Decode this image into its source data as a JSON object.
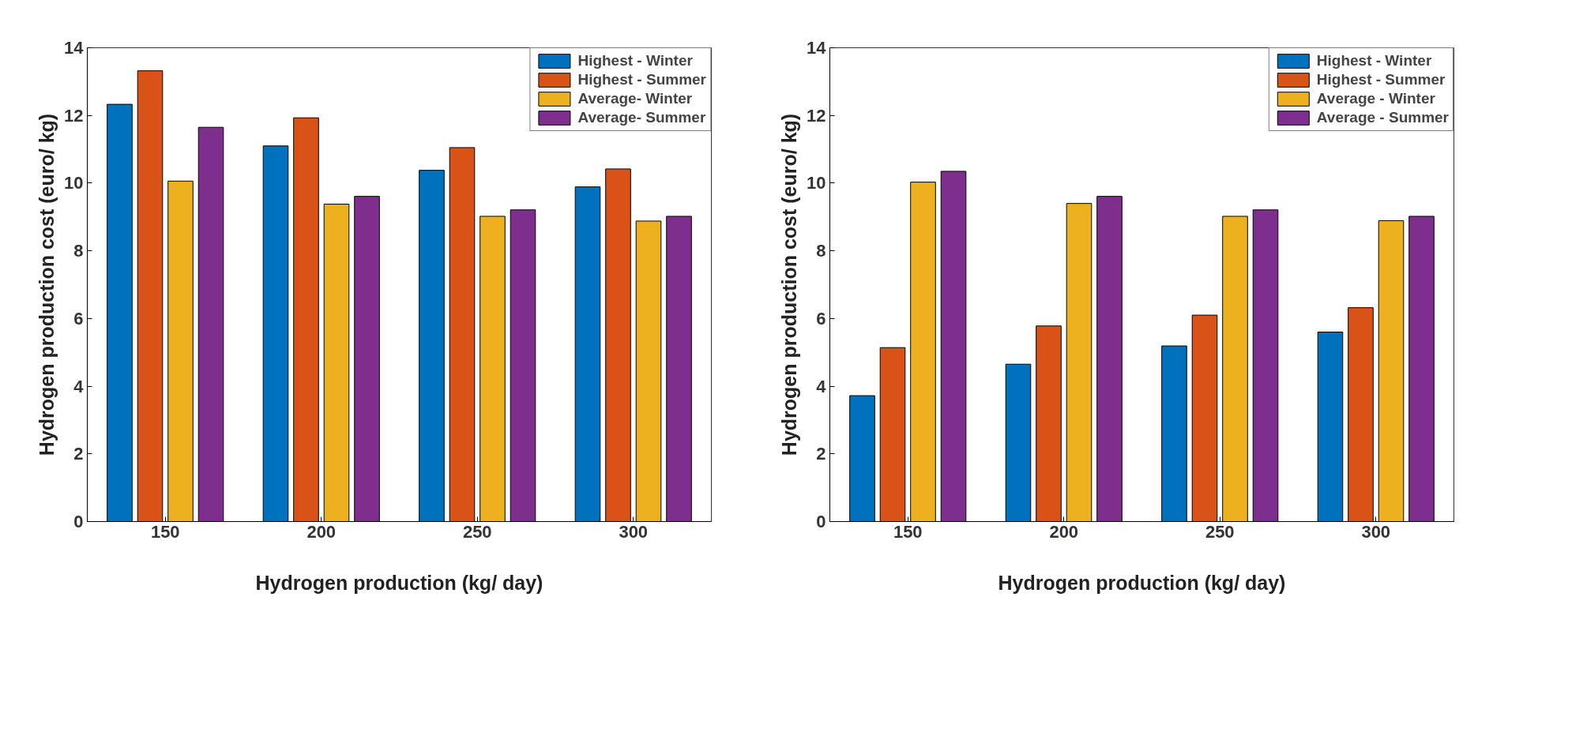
{
  "chart_data": [
    {
      "type": "bar",
      "xlabel": "Hydrogen production (kg/ day)",
      "ylabel": "Hydrogen production cost (euro/ kg)",
      "categories": [
        "150",
        "200",
        "250",
        "300"
      ],
      "ylim": [
        0,
        14
      ],
      "yticks": [
        0,
        2,
        4,
        6,
        8,
        10,
        12,
        14
      ],
      "grid": false,
      "legend": "top right",
      "series": [
        {
          "name": "Highest - Winter",
          "color": "#0072bd",
          "values": [
            12.33,
            11.1,
            10.38,
            9.89
          ]
        },
        {
          "name": "Highest - Summer",
          "color": "#d95319",
          "values": [
            13.32,
            11.93,
            11.05,
            10.42
          ]
        },
        {
          "name": "Average- Winter",
          "color": "#edb120",
          "values": [
            10.06,
            9.38,
            9.02,
            8.88
          ]
        },
        {
          "name": "Average- Summer",
          "color": "#7e2f8e",
          "values": [
            11.65,
            9.61,
            9.21,
            9.02
          ]
        }
      ]
    },
    {
      "type": "bar",
      "xlabel": "Hydrogen production (kg/ day)",
      "ylabel": "Hydrogen production cost (euro/ kg)",
      "categories": [
        "150",
        "200",
        "250",
        "300"
      ],
      "ylim": [
        0,
        14
      ],
      "yticks": [
        0,
        2,
        4,
        6,
        8,
        10,
        12,
        14
      ],
      "grid": false,
      "legend": "top right",
      "series": [
        {
          "name": "Highest - Winter",
          "color": "#0072bd",
          "values": [
            3.72,
            4.65,
            5.19,
            5.6
          ]
        },
        {
          "name": "Highest - Summer",
          "color": "#d95319",
          "values": [
            5.14,
            5.78,
            6.1,
            6.32
          ]
        },
        {
          "name": "Average - Winter",
          "color": "#edb120",
          "values": [
            10.03,
            9.4,
            9.02,
            8.89
          ]
        },
        {
          "name": "Average - Summer",
          "color": "#7e2f8e",
          "values": [
            10.35,
            9.61,
            9.21,
            9.02
          ]
        }
      ]
    }
  ]
}
